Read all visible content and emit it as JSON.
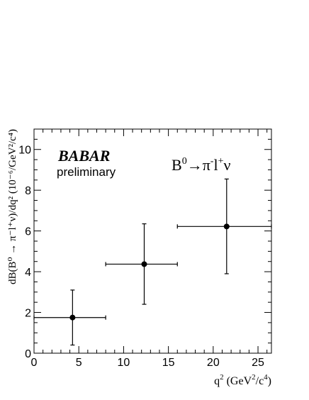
{
  "chart_data": {
    "type": "scatter",
    "xlabel_base": "q",
    "xlabel_sup": "2",
    "xlabel_units": " (GeV",
    "xlabel_units_sup": "2",
    "xlabel_units_end": "/c",
    "xlabel_units_sup2": "4",
    "xlabel_units_close": ")",
    "ylabel": "dB(B⁰ → π⁻l⁺ν)/dq² (10⁻⁶/GeV²/c⁴)",
    "xlim": [
      0,
      26.5
    ],
    "ylim": [
      0,
      11
    ],
    "x_ticks": [
      0,
      5,
      10,
      15,
      20,
      25
    ],
    "y_ticks": [
      0,
      2,
      4,
      6,
      8,
      10
    ],
    "points": [
      {
        "x": 4.3,
        "y": 1.75,
        "xlow": 0,
        "xhigh": 8,
        "ylow": 0.4,
        "yhigh": 3.1
      },
      {
        "x": 12.3,
        "y": 4.37,
        "xlow": 8,
        "xhigh": 16,
        "ylow": 2.4,
        "yhigh": 6.35
      },
      {
        "x": 21.5,
        "y": 6.22,
        "xlow": 16,
        "xhigh": 26.5,
        "ylow": 3.9,
        "yhigh": 8.55
      }
    ]
  },
  "annotations": {
    "logo": "BABAR",
    "preliminary": "preliminary",
    "decay_B": "B",
    "decay_B_sup": "0",
    "decay_arrow": "→π",
    "decay_pi_sup": "-",
    "decay_l": "l",
    "decay_l_sup": "+",
    "decay_nu": "ν"
  }
}
